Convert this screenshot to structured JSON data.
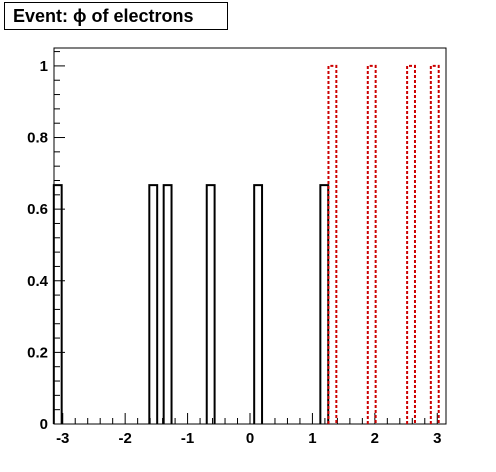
{
  "chart_data": {
    "type": "bar",
    "title": "Event: ϕ of electrons",
    "xlabel": "",
    "ylabel": "",
    "xlim": [
      -3.14,
      3.14
    ],
    "ylim": [
      0,
      1.05
    ],
    "grid": false,
    "x_ticks": [
      -3,
      -2,
      -1,
      0,
      1,
      2,
      3
    ],
    "y_ticks": [
      0,
      0.2,
      0.4,
      0.6,
      0.8,
      1
    ],
    "x_tick_labels": [
      "-3",
      "-2",
      "-1",
      "0",
      "1",
      "2",
      "3"
    ],
    "y_tick_labels": [
      "0",
      "0.2",
      "0.4",
      "0.6",
      "0.8",
      "1"
    ],
    "bin_width": 0.126,
    "series": [
      {
        "color": "#000000",
        "line_style": "solid",
        "bars": [
          {
            "x": -3.08,
            "value": 0.667
          },
          {
            "x": -1.55,
            "value": 0.667
          },
          {
            "x": -1.32,
            "value": 0.667
          },
          {
            "x": -0.63,
            "value": 0.667
          },
          {
            "x": 0.13,
            "value": 0.667
          },
          {
            "x": 1.19,
            "value": 0.667
          }
        ]
      },
      {
        "color": "#cc0000",
        "line_style": "dotted",
        "bars": [
          {
            "x": 1.32,
            "value": 1.0
          },
          {
            "x": 1.95,
            "value": 1.0
          },
          {
            "x": 2.58,
            "value": 1.0
          },
          {
            "x": 2.96,
            "value": 1.0
          }
        ]
      }
    ]
  }
}
